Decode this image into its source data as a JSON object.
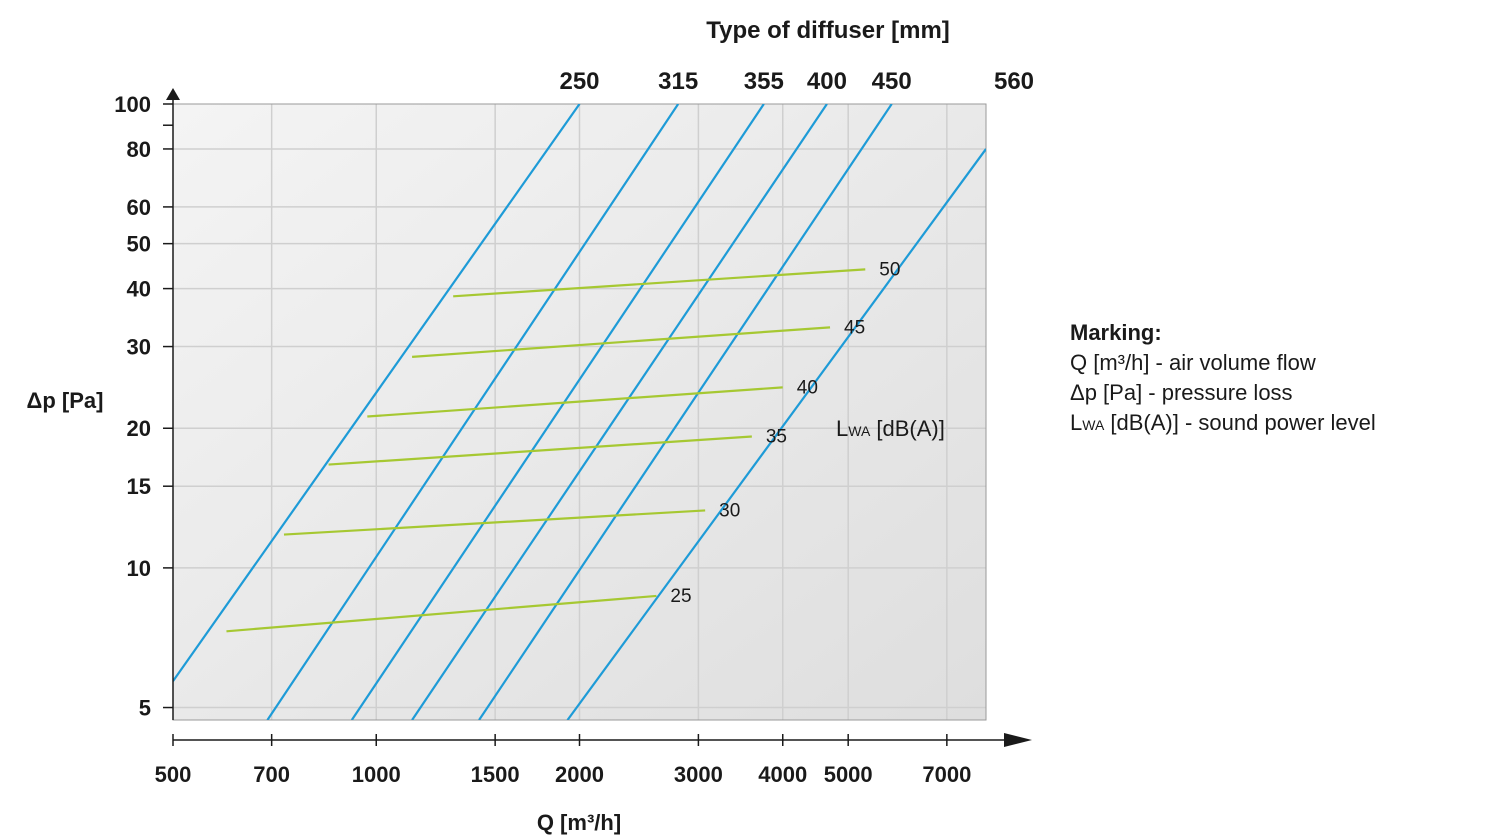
{
  "chart_data": {
    "type": "line",
    "top_title": "Type of diffuser [mm]",
    "xlabel": "Q [m³/h]",
    "ylabel": "Δp [Pa]",
    "x_scale": "log",
    "y_scale": "log",
    "xlim": [
      500,
      8000
    ],
    "ylim": [
      4.7,
      100
    ],
    "x_ticks": [
      500,
      700,
      1000,
      1500,
      2000,
      3000,
      4000,
      5000,
      7000
    ],
    "y_ticks": [
      5,
      10,
      15,
      20,
      30,
      40,
      50,
      60,
      80,
      100
    ],
    "grid": true,
    "diffuser_series": [
      {
        "name": "250",
        "points": [
          [
            500,
            5.7
          ],
          [
            2000,
            100
          ]
        ]
      },
      {
        "name": "315",
        "points": [
          [
            690,
            4.7
          ],
          [
            2800,
            100
          ]
        ]
      },
      {
        "name": "355",
        "points": [
          [
            920,
            4.7
          ],
          [
            3750,
            100
          ]
        ]
      },
      {
        "name": "400",
        "points": [
          [
            1130,
            4.7
          ],
          [
            4650,
            100
          ]
        ]
      },
      {
        "name": "450",
        "points": [
          [
            1420,
            4.7
          ],
          [
            5800,
            100
          ]
        ]
      },
      {
        "name": "560",
        "points": [
          [
            1920,
            4.7
          ],
          [
            8000,
            80
          ]
        ]
      }
    ],
    "sound_series_label": "LWA [dB(A)]",
    "sound_series": [
      {
        "name": "50",
        "points": [
          [
            1300,
            38.5
          ],
          [
            5300,
            44
          ]
        ]
      },
      {
        "name": "45",
        "points": [
          [
            1130,
            28.5
          ],
          [
            4700,
            33
          ]
        ]
      },
      {
        "name": "40",
        "points": [
          [
            970,
            21.2
          ],
          [
            4000,
            24.5
          ]
        ]
      },
      {
        "name": "35",
        "points": [
          [
            850,
            16.7
          ],
          [
            3600,
            19.2
          ]
        ]
      },
      {
        "name": "30",
        "points": [
          [
            730,
            11.8
          ],
          [
            3070,
            13.3
          ]
        ]
      },
      {
        "name": "25",
        "points": [
          [
            600,
            7.3
          ],
          [
            2600,
            8.7
          ]
        ]
      }
    ]
  },
  "legend": {
    "title": "Marking:",
    "line1": "Q [m³/h] - air volume flow",
    "line2": "Δp [Pa] - pressure loss",
    "line3_sub": "WA",
    "line3_rest": " [dB(A)] - sound power level"
  },
  "colors": {
    "diffuser_line": "#1e9bd7",
    "sound_line": "#a6c832",
    "grid": "#cfcfcf",
    "plot_bg_start": "#f2f2f2",
    "plot_bg_end": "#dcdcdc"
  }
}
